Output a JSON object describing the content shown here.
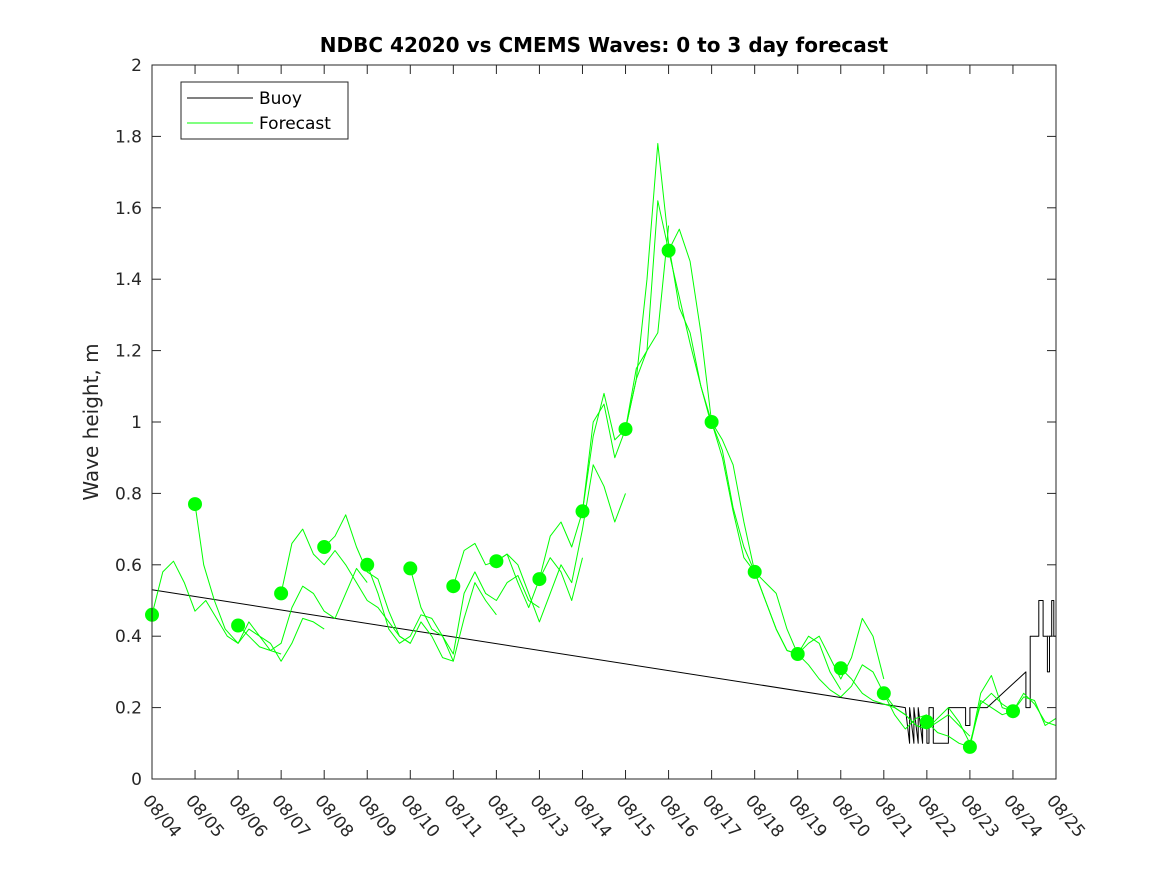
{
  "chart_data": {
    "type": "line",
    "title": "NDBC 42020 vs CMEMS Waves: 0 to 3 day forecast",
    "xlabel": "",
    "ylabel": "Wave height, m",
    "ylim": [
      0,
      2
    ],
    "yticks": [
      "0",
      "0.2",
      "0.4",
      "0.6",
      "0.8",
      "1",
      "1.2",
      "1.4",
      "1.6",
      "1.8",
      "2"
    ],
    "xlim": [
      0,
      21
    ],
    "xticks": [
      "08/04",
      "08/05",
      "08/06",
      "08/07",
      "08/08",
      "08/09",
      "08/10",
      "08/11",
      "08/12",
      "08/13",
      "08/14",
      "08/15",
      "08/16",
      "08/17",
      "08/18",
      "08/19",
      "08/20",
      "08/21",
      "08/22",
      "08/23",
      "08/24",
      "08/25"
    ],
    "legend": {
      "position": "top-left",
      "entries": [
        {
          "label": "Buoy",
          "color": "#000000"
        },
        {
          "label": "Forecast",
          "color": "#00ff00"
        }
      ]
    },
    "series": [
      {
        "name": "Buoy",
        "color": "#000000",
        "x": [
          0,
          17.5,
          17.6,
          17.6,
          17.7,
          17.7,
          17.8,
          17.8,
          17.9,
          17.9,
          18.0,
          18.0,
          18.05,
          18.05,
          18.15,
          18.15,
          18.3,
          18.3,
          18.5,
          18.5,
          18.9,
          18.9,
          19.0,
          19.0,
          19.4,
          19.4,
          20.3,
          20.3,
          20.4,
          20.4,
          20.6,
          20.6,
          20.7,
          20.7,
          20.8,
          20.8,
          20.85,
          20.85,
          20.9,
          20.9,
          20.95,
          20.95,
          21.0,
          21.0
        ],
        "y": [
          0.53,
          0.2,
          0.1,
          0.2,
          0.1,
          0.2,
          0.1,
          0.2,
          0.1,
          0.15,
          0.15,
          0.1,
          0.1,
          0.2,
          0.2,
          0.1,
          0.1,
          0.1,
          0.1,
          0.2,
          0.2,
          0.15,
          0.15,
          0.2,
          0.2,
          0.2,
          0.3,
          0.2,
          0.2,
          0.4,
          0.4,
          0.5,
          0.5,
          0.4,
          0.4,
          0.3,
          0.3,
          0.4,
          0.4,
          0.5,
          0.5,
          0.4,
          0.4,
          0.5
        ]
      },
      {
        "name": "Forecast run 1",
        "color": "#00ff00",
        "x": [
          0.0,
          0.25,
          0.5,
          0.75,
          1.0,
          1.25,
          1.5,
          1.75,
          2.0,
          2.25,
          2.5,
          2.75,
          3.0
        ],
        "y": [
          0.46,
          0.58,
          0.61,
          0.55,
          0.47,
          0.5,
          0.45,
          0.4,
          0.38,
          0.44,
          0.4,
          0.36,
          0.35
        ]
      },
      {
        "name": "Forecast run 2",
        "color": "#00ff00",
        "x": [
          1.0,
          1.2,
          1.45,
          1.7,
          2.0,
          2.25,
          2.5,
          2.75,
          3.0,
          3.25,
          3.5,
          3.75,
          4.0
        ],
        "y": [
          0.77,
          0.6,
          0.5,
          0.42,
          0.38,
          0.42,
          0.4,
          0.38,
          0.33,
          0.38,
          0.45,
          0.44,
          0.42
        ]
      },
      {
        "name": "Forecast run 3",
        "color": "#00ff00",
        "x": [
          2.0,
          2.25,
          2.5,
          2.75,
          3.0,
          3.25,
          3.5,
          3.75,
          4.0,
          4.25,
          4.5,
          4.75,
          5.0
        ],
        "y": [
          0.43,
          0.4,
          0.37,
          0.36,
          0.38,
          0.48,
          0.54,
          0.52,
          0.47,
          0.45,
          0.52,
          0.59,
          0.55
        ]
      },
      {
        "name": "Forecast run 4",
        "color": "#00ff00",
        "x": [
          3.0,
          3.25,
          3.5,
          3.75,
          4.0,
          4.25,
          4.5,
          4.75,
          5.0,
          5.25,
          5.5,
          5.75,
          6.0
        ],
        "y": [
          0.52,
          0.66,
          0.7,
          0.63,
          0.6,
          0.64,
          0.6,
          0.55,
          0.5,
          0.48,
          0.44,
          0.4,
          0.38
        ]
      },
      {
        "name": "Forecast run 5",
        "color": "#00ff00",
        "x": [
          4.0,
          4.25,
          4.5,
          4.75,
          5.0,
          5.25,
          5.5,
          5.75,
          6.0,
          6.25,
          6.5,
          6.75,
          7.0
        ],
        "y": [
          0.65,
          0.68,
          0.74,
          0.65,
          0.58,
          0.56,
          0.47,
          0.4,
          0.38,
          0.44,
          0.4,
          0.34,
          0.33
        ]
      },
      {
        "name": "Forecast run 6",
        "color": "#00ff00",
        "x": [
          5.0,
          5.25,
          5.5,
          5.75,
          6.0,
          6.25,
          6.5,
          6.75,
          7.0,
          7.25,
          7.5,
          7.75,
          8.0
        ],
        "y": [
          0.6,
          0.52,
          0.42,
          0.38,
          0.4,
          0.46,
          0.45,
          0.4,
          0.33,
          0.45,
          0.55,
          0.5,
          0.46
        ]
      },
      {
        "name": "Forecast run 7",
        "color": "#00ff00",
        "x": [
          6.0,
          6.25,
          6.5,
          6.75,
          7.0,
          7.25,
          7.5,
          7.75,
          8.0,
          8.25,
          8.5,
          8.75,
          9.0
        ],
        "y": [
          0.59,
          0.48,
          0.42,
          0.4,
          0.35,
          0.52,
          0.58,
          0.52,
          0.5,
          0.55,
          0.57,
          0.5,
          0.48
        ]
      },
      {
        "name": "Forecast run 8",
        "color": "#00ff00",
        "x": [
          7.0,
          7.25,
          7.5,
          7.75,
          8.0,
          8.25,
          8.5,
          8.75,
          9.0,
          9.25,
          9.5,
          9.75,
          10.0
        ],
        "y": [
          0.54,
          0.64,
          0.66,
          0.6,
          0.61,
          0.63,
          0.55,
          0.48,
          0.56,
          0.62,
          0.58,
          0.5,
          0.62
        ]
      },
      {
        "name": "Forecast run 9",
        "color": "#00ff00",
        "x": [
          8.0,
          8.25,
          8.5,
          8.75,
          9.0,
          9.25,
          9.5,
          9.75,
          10.0,
          10.25,
          10.5,
          10.75,
          11.0
        ],
        "y": [
          0.61,
          0.63,
          0.6,
          0.52,
          0.44,
          0.52,
          0.6,
          0.55,
          0.7,
          0.88,
          0.82,
          0.72,
          0.8
        ]
      },
      {
        "name": "Forecast run 10",
        "color": "#00ff00",
        "x": [
          9.0,
          9.25,
          9.5,
          9.75,
          10.0,
          10.25,
          10.5,
          10.75,
          11.0,
          11.25,
          11.5,
          11.75,
          12.0
        ],
        "y": [
          0.56,
          0.68,
          0.72,
          0.65,
          0.75,
          1.0,
          1.05,
          0.9,
          0.98,
          1.12,
          1.2,
          1.25,
          1.55
        ]
      },
      {
        "name": "Forecast run 11",
        "color": "#00ff00",
        "x": [
          10.0,
          10.25,
          10.5,
          10.75,
          11.0,
          11.25,
          11.5,
          11.75,
          12.0,
          12.25,
          12.5,
          12.75,
          13.0
        ],
        "y": [
          0.75,
          0.96,
          1.08,
          0.95,
          0.98,
          1.15,
          1.2,
          1.62,
          1.48,
          1.35,
          1.22,
          1.1,
          0.99
        ]
      },
      {
        "name": "Forecast run 12",
        "color": "#00ff00",
        "x": [
          11.0,
          11.25,
          11.5,
          11.75,
          12.0,
          12.25,
          12.5,
          12.75,
          13.0,
          13.25,
          13.5,
          13.75,
          14.0
        ],
        "y": [
          0.98,
          1.12,
          1.4,
          1.78,
          1.5,
          1.32,
          1.25,
          1.1,
          1.0,
          0.95,
          0.88,
          0.72,
          0.58
        ]
      },
      {
        "name": "Forecast run 13",
        "color": "#00ff00",
        "x": [
          12.0,
          12.25,
          12.5,
          12.75,
          13.0,
          13.25,
          13.5,
          13.75,
          14.0,
          14.25,
          14.5,
          14.75,
          15.0
        ],
        "y": [
          1.48,
          1.54,
          1.45,
          1.25,
          1.0,
          0.92,
          0.76,
          0.65,
          0.58,
          0.55,
          0.52,
          0.42,
          0.35
        ]
      },
      {
        "name": "Forecast run 14",
        "color": "#00ff00",
        "x": [
          13.0,
          13.25,
          13.5,
          13.75,
          14.0,
          14.25,
          14.5,
          14.75,
          15.0,
          15.25,
          15.5,
          15.75,
          16.0
        ],
        "y": [
          1.0,
          0.9,
          0.75,
          0.62,
          0.58,
          0.5,
          0.42,
          0.36,
          0.35,
          0.4,
          0.38,
          0.3,
          0.25
        ]
      },
      {
        "name": "Forecast run 15",
        "color": "#00ff00",
        "x": [
          14.0,
          14.25,
          14.5,
          14.75,
          15.0,
          15.25,
          15.5,
          15.75,
          16.0,
          16.25,
          16.5,
          16.75,
          17.0
        ],
        "y": [
          0.58,
          0.5,
          0.42,
          0.36,
          0.35,
          0.38,
          0.4,
          0.34,
          0.28,
          0.34,
          0.45,
          0.4,
          0.28
        ]
      },
      {
        "name": "Forecast run 16",
        "color": "#00ff00",
        "x": [
          15.0,
          15.25,
          15.5,
          15.75,
          16.0,
          16.25,
          16.5,
          16.75,
          17.0,
          17.25,
          17.5,
          17.75,
          18.0
        ],
        "y": [
          0.35,
          0.32,
          0.28,
          0.25,
          0.23,
          0.26,
          0.32,
          0.3,
          0.24,
          0.18,
          0.14,
          0.17,
          0.18
        ]
      },
      {
        "name": "Forecast run 17",
        "color": "#00ff00",
        "x": [
          16.0,
          16.25,
          16.5,
          16.75,
          17.0,
          17.25,
          17.5,
          17.75,
          18.0,
          18.25,
          18.5,
          18.75,
          19.0
        ],
        "y": [
          0.31,
          0.28,
          0.24,
          0.22,
          0.21,
          0.2,
          0.18,
          0.15,
          0.14,
          0.16,
          0.18,
          0.15,
          0.12
        ]
      },
      {
        "name": "Forecast run 18",
        "color": "#00ff00",
        "x": [
          17.0,
          17.25,
          17.5,
          17.75,
          18.0,
          18.25,
          18.5,
          18.75,
          19.0,
          19.25,
          19.5,
          19.75,
          20.0
        ],
        "y": [
          0.24,
          0.2,
          0.18,
          0.15,
          0.14,
          0.17,
          0.2,
          0.16,
          0.1,
          0.21,
          0.24,
          0.21,
          0.19
        ]
      },
      {
        "name": "Forecast run 19",
        "color": "#00ff00",
        "x": [
          18.0,
          18.25,
          18.5,
          18.75,
          19.0,
          19.25,
          19.5,
          19.75,
          20.0,
          20.25,
          20.5,
          20.75,
          21.0
        ],
        "y": [
          0.16,
          0.13,
          0.12,
          0.1,
          0.09,
          0.24,
          0.29,
          0.2,
          0.19,
          0.23,
          0.22,
          0.15,
          0.17
        ]
      },
      {
        "name": "Forecast run 20",
        "color": "#00ff00",
        "x": [
          19.0,
          19.25,
          19.5,
          19.75,
          20.0,
          20.25,
          20.5,
          20.75,
          21.0
        ],
        "y": [
          0.09,
          0.22,
          0.2,
          0.18,
          0.19,
          0.24,
          0.21,
          0.16,
          0.15
        ]
      }
    ],
    "markers": {
      "name": "Forecast analysis points",
      "color": "#00ff00",
      "x": [
        0,
        1,
        2,
        3,
        4,
        5,
        6,
        7,
        8,
        9,
        10,
        11,
        12,
        13,
        14,
        15,
        16,
        17,
        18,
        19,
        20
      ],
      "y": [
        0.46,
        0.77,
        0.43,
        0.52,
        0.65,
        0.6,
        0.59,
        0.54,
        0.61,
        0.56,
        0.75,
        0.98,
        1.48,
        1.0,
        0.58,
        0.35,
        0.31,
        0.24,
        0.16,
        0.09,
        0.19
      ]
    }
  }
}
